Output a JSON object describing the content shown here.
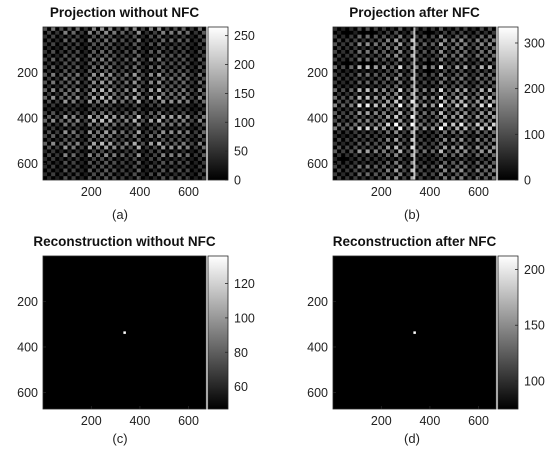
{
  "figure": {
    "labels": [
      "(a)",
      "(b)",
      "(c)",
      "(d)"
    ]
  },
  "chart_data": [
    {
      "type": "heatmap",
      "title": "Projection without NFC",
      "xticks": [
        200,
        400,
        600
      ],
      "yticks": [
        200,
        400,
        600
      ],
      "xlim": [
        1,
        672
      ],
      "ylim": [
        1,
        672
      ],
      "colorbar": {
        "range": [
          0,
          265
        ],
        "ticks": [
          0,
          50,
          100,
          150,
          200,
          250
        ]
      },
      "colormap": "gray",
      "pattern": "periodic checkerboard grating"
    },
    {
      "type": "heatmap",
      "title": "Projection after NFC",
      "xticks": [
        200,
        400,
        600
      ],
      "yticks": [
        200,
        400,
        600
      ],
      "xlim": [
        1,
        672
      ],
      "ylim": [
        1,
        672
      ],
      "colorbar": {
        "range": [
          0,
          335
        ],
        "ticks": [
          0,
          100,
          200,
          300
        ]
      },
      "colormap": "gray",
      "pattern": "periodic checkerboard grating"
    },
    {
      "type": "heatmap",
      "title": "Reconstruction without NFC",
      "xticks": [
        200,
        400,
        600
      ],
      "yticks": [
        200,
        400,
        600
      ],
      "xlim": [
        1,
        672
      ],
      "ylim": [
        1,
        672
      ],
      "colorbar": {
        "range": [
          47,
          136
        ],
        "ticks": [
          60,
          80,
          100,
          120
        ]
      },
      "colormap": "gray",
      "point": {
        "x": 336,
        "y": 336
      }
    },
    {
      "type": "heatmap",
      "title": "Reconstruction after NFC",
      "xticks": [
        200,
        400,
        600
      ],
      "yticks": [
        200,
        400,
        600
      ],
      "xlim": [
        1,
        672
      ],
      "ylim": [
        1,
        672
      ],
      "colorbar": {
        "range": [
          75,
          212
        ],
        "ticks": [
          100,
          150,
          200
        ]
      },
      "colormap": "gray",
      "point": {
        "x": 336,
        "y": 336
      }
    }
  ]
}
